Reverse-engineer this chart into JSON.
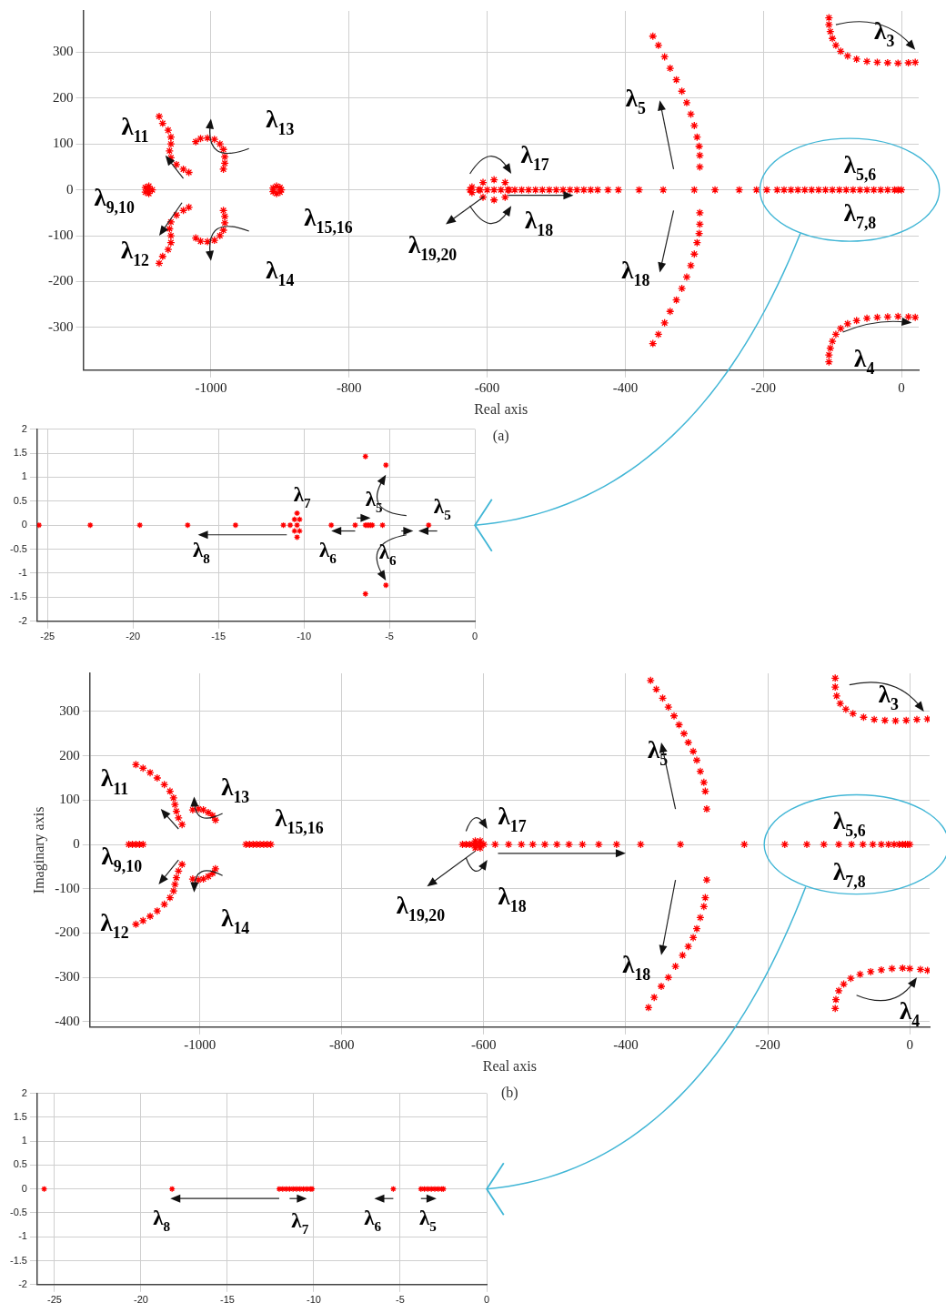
{
  "chart_data": [
    {
      "type": "scatter",
      "xlabel": "Real axis",
      "color": "#ff0000",
      "marker": "cross",
      "grid": true,
      "xlim": [
        -1185,
        25
      ],
      "ylim": [
        -393,
        390
      ],
      "xticks": [
        -1000,
        -800,
        -600,
        -400,
        -200,
        0
      ],
      "yticks": [
        -300,
        -200,
        -100,
        0,
        100,
        200,
        300
      ],
      "x": [
        -105,
        -105,
        -103,
        -100,
        -95,
        -88,
        -78,
        -65,
        -50,
        -35,
        -20,
        -5,
        10,
        20,
        -105,
        -105,
        -103,
        -100,
        -95,
        -88,
        -78,
        -65,
        -50,
        -35,
        -20,
        -5,
        10,
        20,
        -360,
        -352,
        -343,
        -335,
        -326,
        -318,
        -311,
        -305,
        -300,
        -296,
        -293,
        -292,
        -292,
        -360,
        -352,
        -343,
        -335,
        -326,
        -318,
        -311,
        -305,
        -300,
        -296,
        -293,
        -292,
        -292,
        -625,
        -622,
        -622,
        -610,
        -600,
        -590,
        -580,
        -570,
        -560,
        -550,
        -540,
        -530,
        -520,
        -510,
        -500,
        -490,
        -480,
        -470,
        -460,
        -450,
        -440,
        -425,
        -410,
        -380,
        -345,
        -300,
        -270,
        -235,
        -210,
        -195,
        -180,
        -170,
        -160,
        -150,
        -140,
        -130,
        -120,
        -110,
        -100,
        -90,
        -80,
        -70,
        -60,
        -50,
        -40,
        -30,
        -20,
        -10,
        -5,
        0,
        -612,
        -606,
        -590,
        -574,
        -568,
        -574,
        -590,
        -606,
        -1075,
        -1070,
        -1062,
        -1058,
        -1058,
        -1060,
        -1058,
        -1050,
        -1040,
        -1032,
        -1075,
        -1070,
        -1062,
        -1058,
        -1058,
        -1060,
        -1058,
        -1050,
        -1040,
        -1032,
        -1022,
        -1015,
        -1005,
        -995,
        -987,
        -982,
        -980,
        -980,
        -982,
        -1022,
        -1015,
        -1005,
        -995,
        -987,
        -982,
        -980,
        -980,
        -982,
        -1095,
        -1095,
        -1090,
        -1090,
        -1090,
        -1085,
        -910,
        -910,
        -905,
        -905,
        -900,
        -900,
        -898
      ],
      "values": [
        375,
        360,
        345,
        330,
        315,
        302,
        292,
        285,
        280,
        278,
        277,
        276,
        277,
        278,
        -375,
        -360,
        -345,
        -330,
        -315,
        -302,
        -292,
        -285,
        -280,
        -278,
        -277,
        -276,
        -277,
        -278,
        335,
        315,
        290,
        265,
        240,
        215,
        190,
        165,
        140,
        115,
        95,
        75,
        50,
        -335,
        -315,
        -290,
        -265,
        -240,
        -215,
        -190,
        -165,
        -140,
        -115,
        -95,
        -75,
        -50,
        0,
        6,
        -6,
        0,
        0,
        0,
        0,
        0,
        0,
        0,
        0,
        0,
        0,
        0,
        0,
        0,
        0,
        0,
        0,
        0,
        0,
        0,
        0,
        0,
        0,
        0,
        0,
        0,
        0,
        0,
        0,
        0,
        0,
        0,
        0,
        0,
        0,
        0,
        0,
        0,
        0,
        0,
        0,
        0,
        0,
        0,
        0,
        0,
        0,
        0,
        0,
        16,
        22,
        16,
        0,
        -16,
        -22,
        -16,
        160,
        145,
        130,
        115,
        100,
        85,
        70,
        55,
        45,
        38,
        -160,
        -145,
        -130,
        -115,
        -100,
        -85,
        -70,
        -55,
        -45,
        -38,
        105,
        112,
        113,
        110,
        100,
        88,
        72,
        58,
        45,
        -105,
        -112,
        -113,
        -110,
        -100,
        -88,
        -72,
        -58,
        -45,
        5,
        -5,
        8,
        0,
        -8,
        0,
        4,
        -4,
        8,
        -8,
        5,
        -5,
        0
      ],
      "annotations": [
        "(a)",
        {
          "text": "λ$_{3}$",
          "x": 20,
          "y": 278
        },
        "λ$_{5}$",
        "λ$_{5,6}$",
        "λ$_{7,8}$",
        {
          "text": "λ$_{4}$",
          "x": 20,
          "y": -278
        },
        "λ$_{18}$",
        {
          "text": "λ$_{17}$",
          "x": -590,
          "y": 22
        },
        "λ$_{18}$",
        {
          "text": "λ$_{19,20}$",
          "x": -625,
          "y": 0
        },
        "λ$_{11}$",
        "λ$_{13}$",
        "λ$_{9,10}$",
        "λ$_{12}$",
        "λ$_{14}$",
        "λ$_{15,16}$"
      ]
    },
    {
      "type": "scatter",
      "color": "#ff0000",
      "marker": "cross",
      "grid": true,
      "xlim": [
        -25.6,
        0
      ],
      "ylim": [
        -2,
        2
      ],
      "xticks": [
        -25,
        -20,
        -15,
        -10,
        -5,
        0
      ],
      "yticks": [
        -2,
        -1.5,
        -1,
        -0.5,
        0,
        0.5,
        1,
        1.5,
        2
      ],
      "x": [
        -25.5,
        -22.5,
        -19.6,
        -16.8,
        -14,
        -11.2,
        -10.8,
        -10.4,
        -10.4,
        -10.25,
        -10.55,
        -10.25,
        -10.55,
        -10.4,
        -8.4,
        -7,
        -6.4,
        -6.3,
        -6.2,
        -6.1,
        -6,
        -5.4,
        -2.7,
        -6.4,
        -6.4,
        -5.2,
        -5.2
      ],
      "values": [
        0,
        0,
        0,
        0,
        0,
        0,
        0,
        0.25,
        -0.25,
        0.12,
        0.12,
        -0.12,
        -0.12,
        0,
        0,
        0,
        0,
        0,
        0,
        0,
        0,
        0,
        0,
        1.43,
        -1.43,
        1.25,
        -1.25
      ],
      "annotations": [
        "λ$_{7}$",
        "λ$_{8}$",
        "λ$_{6}$",
        "λ$_{5}$",
        "λ$_{6}$",
        "λ$_{5}$"
      ]
    },
    {
      "type": "scatter",
      "xlabel": "Real axis",
      "ylabel": "Imaginary axis",
      "color": "#ff0000",
      "marker": "cross",
      "grid": true,
      "xlim": [
        -1155,
        28
      ],
      "ylim": [
        -412,
        386
      ],
      "xticks": [
        -1000,
        -800,
        -600,
        -400,
        -200,
        0
      ],
      "yticks": [
        -400,
        -300,
        -200,
        -100,
        0,
        100,
        200,
        300
      ],
      "x": [
        -105,
        -105,
        -103,
        -98,
        -90,
        -80,
        -65,
        -50,
        -35,
        -20,
        -5,
        10,
        25,
        -105,
        -104,
        -100,
        -93,
        -83,
        -70,
        -55,
        -40,
        -25,
        -10,
        0,
        15,
        25,
        -365,
        -357,
        -348,
        -340,
        -332,
        -325,
        -318,
        -312,
        -305,
        -300,
        -295,
        -290,
        -288,
        -286,
        -286,
        -288,
        -290,
        -295,
        -300,
        -305,
        -312,
        -320,
        -330,
        -340,
        -350,
        -360,
        -368,
        -630,
        -625,
        -620,
        -615,
        -610,
        -605,
        -600,
        -612,
        -612,
        -605,
        -605,
        -584,
        -565,
        -547,
        -531,
        -514,
        -497,
        -480,
        -461,
        -438,
        -413,
        -379,
        -323,
        -233,
        -176,
        -145,
        -121,
        -100,
        -82,
        -66,
        -52,
        -40,
        -30,
        -22,
        -15,
        -10,
        -6,
        -3,
        0,
        -1090,
        -1080,
        -1070,
        -1060,
        -1050,
        -1042,
        -1037,
        -1035,
        -1033,
        -1030,
        -1025,
        -1090,
        -1080,
        -1070,
        -1060,
        -1050,
        -1042,
        -1037,
        -1035,
        -1033,
        -1030,
        -1025,
        -1010,
        -1002,
        -995,
        -988,
        -982,
        -978,
        -1010,
        -1002,
        -995,
        -988,
        -982,
        -978,
        -1100,
        -1095,
        -1090,
        -1085,
        -1080,
        -935,
        -930,
        -925,
        -920,
        -915,
        -910,
        -905,
        -900
      ],
      "values": [
        375,
        355,
        335,
        318,
        305,
        295,
        287,
        282,
        280,
        279,
        280,
        282,
        283,
        -370,
        -350,
        -330,
        -315,
        -302,
        -293,
        -287,
        -283,
        -280,
        -279,
        -280,
        -282,
        -284,
        370,
        350,
        330,
        310,
        290,
        270,
        250,
        230,
        210,
        190,
        165,
        140,
        120,
        80,
        -80,
        -120,
        -140,
        -165,
        -190,
        -210,
        -230,
        -250,
        -275,
        -300,
        -320,
        -345,
        -368,
        0,
        0,
        0,
        0,
        0,
        0,
        0,
        8,
        -8,
        8,
        -8,
        0,
        0,
        0,
        0,
        0,
        0,
        0,
        0,
        0,
        0,
        0,
        0,
        0,
        0,
        0,
        0,
        0,
        0,
        0,
        0,
        0,
        0,
        0,
        0,
        0,
        0,
        0,
        0,
        180,
        172,
        162,
        150,
        135,
        120,
        105,
        90,
        75,
        60,
        45,
        -180,
        -172,
        -162,
        -150,
        -135,
        -120,
        -105,
        -90,
        -75,
        -60,
        -45,
        78,
        80,
        78,
        72,
        65,
        55,
        -78,
        -80,
        -78,
        -72,
        -65,
        -55,
        0,
        0,
        0,
        0,
        0,
        0,
        0,
        0,
        0,
        0,
        0,
        0,
        0
      ],
      "annotations": [
        "(b)",
        "λ$_{3}$",
        "λ$_{5}$",
        "λ$_{5,6}$",
        "λ$_{7,8}$",
        "λ$_{4}$",
        "λ$_{18}$",
        "λ$_{17}$",
        "λ$_{18}$",
        {
          "text": "λ$_{19,20}$",
          "x": -630,
          "y": 0
        },
        "λ$_{11}$",
        "λ$_{13}$",
        "λ$_{15,16}$",
        "λ$_{9,10}$",
        "λ$_{12}$",
        "λ$_{14}$"
      ]
    },
    {
      "type": "scatter",
      "color": "#ff0000",
      "marker": "cross",
      "grid": true,
      "xlim": [
        -26,
        0
      ],
      "ylim": [
        -2,
        2
      ],
      "xticks": [
        -25,
        -20,
        -15,
        -10,
        -5,
        0
      ],
      "yticks": [
        -2,
        -1.5,
        -1,
        -0.5,
        0,
        0.5,
        1,
        1.5,
        2
      ],
      "x": [
        -25.6,
        -18.2,
        -12,
        -11.8,
        -11.6,
        -11.4,
        -11.2,
        -11,
        -10.8,
        -10.6,
        -10.4,
        -10.2,
        -10.1,
        -5.4,
        -3.8,
        -3.6,
        -3.4,
        -3.2,
        -3,
        -2.8,
        -2.6,
        -2.5
      ],
      "values": [
        0,
        0,
        0,
        0,
        0,
        0,
        0,
        0,
        0,
        0,
        0,
        0,
        0,
        0,
        0,
        0,
        0,
        0,
        0,
        0,
        0,
        0
      ],
      "annotations": [
        "λ$_{8}$",
        "λ$_{7}$",
        "λ$_{6}$",
        "λ$_{5}$"
      ]
    }
  ]
}
